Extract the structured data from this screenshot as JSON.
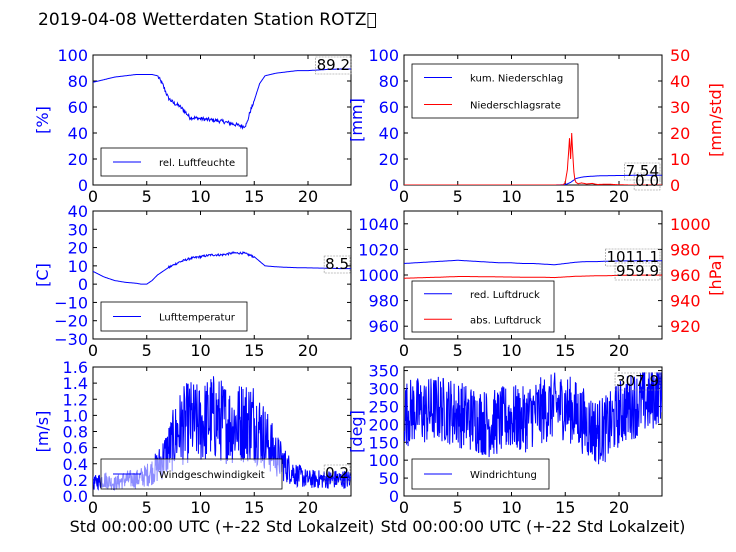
{
  "title": "2019-04-08 Wetterdaten Station ROTZ\u0000",
  "chart_data": [
    {
      "type": "line",
      "id": "humidity",
      "ylabel": "[%]",
      "ylim": [
        0,
        100
      ],
      "yticks": [
        "0",
        "20",
        "40",
        "60",
        "80",
        "100"
      ],
      "xlim": [
        0,
        24
      ],
      "xticks": [
        "0",
        "5",
        "10",
        "15",
        "20"
      ],
      "xlabel": "",
      "grid": false,
      "legend_position": "lower-center",
      "value_label": "89.2",
      "series": [
        {
          "name": "rel. Luftfeuchte",
          "color": "#0000ff",
          "axis": "left",
          "x": [
            0,
            1,
            2,
            3,
            4,
            5,
            5.5,
            6,
            6.5,
            7,
            7.5,
            8,
            8.5,
            9,
            10,
            11,
            12,
            13,
            13.5,
            14,
            14.3,
            14.6,
            15,
            15.5,
            16,
            17,
            18,
            19,
            20,
            21,
            22,
            23,
            24
          ],
          "y": [
            79,
            81,
            83,
            84,
            85,
            85,
            85,
            84,
            77,
            67,
            63,
            61,
            57,
            52,
            51,
            50,
            49,
            47,
            46,
            45,
            47,
            56,
            65,
            78,
            84,
            86,
            87,
            88,
            88,
            88.5,
            89,
            89.2,
            89.2
          ]
        }
      ]
    },
    {
      "type": "line",
      "id": "precipitation",
      "ylabel": "[mm]",
      "ylabel_right": "[mm/std]",
      "ylim": [
        0,
        100
      ],
      "ylim_right": [
        0,
        50
      ],
      "yticks": [
        "0",
        "20",
        "40",
        "60",
        "80",
        "100"
      ],
      "yticks_right": [
        "0",
        "10",
        "20",
        "30",
        "40",
        "50"
      ],
      "xlim": [
        0,
        24
      ],
      "xticks": [
        "0",
        "5",
        "10",
        "15",
        "20"
      ],
      "xlabel": "",
      "grid": false,
      "legend_position": "top-left",
      "value_labels": [
        "7.54",
        "0.0"
      ],
      "series": [
        {
          "name": "kum. Niederschlag",
          "color": "#0000ff",
          "axis": "left",
          "x": [
            0,
            14,
            15,
            15.5,
            16,
            16.5,
            17,
            18,
            19,
            20,
            21,
            22,
            23,
            24
          ],
          "y": [
            0,
            0,
            0.2,
            2,
            5,
            6,
            6.5,
            7,
            7.2,
            7.3,
            7.4,
            7.5,
            7.54,
            7.54
          ]
        },
        {
          "name": "Niederschlagsrate",
          "color": "#ff0000",
          "axis": "right",
          "x": [
            0,
            14.8,
            15,
            15.2,
            15.4,
            15.5,
            15.6,
            15.7,
            15.8,
            15.9,
            16,
            16.2,
            16.5,
            17,
            17.5,
            18,
            19,
            20,
            21,
            22,
            23,
            24
          ],
          "y": [
            0,
            0,
            1,
            6,
            18,
            10,
            20,
            12,
            5,
            2,
            1,
            0.5,
            0.8,
            0.4,
            0.6,
            0.2,
            0.3,
            0.1,
            0,
            0,
            0,
            0
          ]
        }
      ]
    },
    {
      "type": "line",
      "id": "temperature",
      "ylabel": "[C]",
      "ylim": [
        -30,
        40
      ],
      "yticks": [
        "−30",
        "−20",
        "−10",
        "0",
        "10",
        "20",
        "30",
        "40"
      ],
      "xlim": [
        0,
        24
      ],
      "xticks": [
        "0",
        "5",
        "10",
        "15",
        "20"
      ],
      "xlabel": "",
      "grid": false,
      "legend_position": "lower-center",
      "value_label": "8.5",
      "series": [
        {
          "name": "Lufttemperatur",
          "color": "#0000ff",
          "axis": "left",
          "x": [
            0,
            1,
            2,
            3,
            4,
            4.5,
            5,
            5.5,
            6,
            7,
            8,
            9,
            10,
            11,
            12,
            13,
            14,
            14.5,
            15,
            16,
            17,
            18,
            19,
            20,
            21,
            22,
            23,
            24
          ],
          "y": [
            7,
            4,
            2,
            1,
            0.5,
            0,
            0,
            2,
            5,
            9,
            12,
            14,
            15,
            16,
            16,
            17,
            17,
            16,
            15,
            10,
            9.5,
            9.2,
            9,
            8.9,
            8.8,
            8.7,
            8.5,
            8.5
          ]
        }
      ]
    },
    {
      "type": "line",
      "id": "pressure",
      "ylabel_right": "[hPa]",
      "ylim": [
        950,
        1050
      ],
      "ylim_right": [
        910,
        1010
      ],
      "yticks": [
        "960",
        "980",
        "1000",
        "1020",
        "1040"
      ],
      "yticks_right": [
        "920",
        "940",
        "960",
        "980",
        "1000"
      ],
      "xlim": [
        0,
        24
      ],
      "xticks": [
        "0",
        "5",
        "10",
        "15",
        "20"
      ],
      "xlabel": "",
      "grid": false,
      "legend_position": "lower-left",
      "value_labels": [
        "1011.1",
        "959.9"
      ],
      "series": [
        {
          "name": "red. Luftdruck",
          "color": "#0000ff",
          "axis": "left",
          "x": [
            0,
            1,
            2,
            3,
            4,
            5,
            6,
            7,
            8,
            9,
            10,
            11,
            12,
            13,
            14,
            15,
            16,
            17,
            18,
            19,
            20,
            21,
            22,
            23,
            24
          ],
          "y": [
            1009,
            1009.5,
            1010,
            1010.5,
            1011,
            1011.5,
            1011,
            1010.5,
            1010,
            1009.5,
            1009.5,
            1009,
            1009,
            1008.5,
            1008,
            1009,
            1010,
            1010.5,
            1010.5,
            1010.8,
            1011,
            1011,
            1011.1,
            1011.1,
            1011.1
          ]
        },
        {
          "name": "abs. Luftdruck",
          "color": "#ff0000",
          "axis": "right",
          "x": [
            0,
            1,
            2,
            3,
            4,
            5,
            6,
            7,
            8,
            9,
            10,
            11,
            12,
            13,
            14,
            15,
            16,
            17,
            18,
            19,
            20,
            21,
            22,
            23,
            24
          ],
          "y": [
            957.5,
            957.7,
            958,
            958.2,
            958.5,
            958.8,
            958.8,
            958.7,
            958.6,
            958.5,
            958.4,
            958.3,
            958.3,
            958.2,
            958,
            958.5,
            959,
            959.2,
            959.4,
            959.5,
            959.7,
            959.8,
            959.9,
            959.9,
            959.9
          ]
        }
      ]
    },
    {
      "type": "line",
      "id": "windspeed",
      "ylabel": "[m/s]",
      "ylim": [
        0,
        1.6
      ],
      "yticks": [
        "0.0",
        "0.2",
        "0.4",
        "0.6",
        "0.8",
        "1.0",
        "1.2",
        "1.4",
        "1.6"
      ],
      "xlim": [
        0,
        24
      ],
      "xticks": [
        "0",
        "5",
        "10",
        "15",
        "20"
      ],
      "xlabel": "Std 00:00:00 UTC (+-22 Std Lokalzeit)",
      "grid": false,
      "legend_position": "lower-center",
      "value_label": "0.2",
      "series": [
        {
          "name": "Windgeschwindigkeit",
          "color": "#0000ff",
          "axis": "left",
          "noisy": true,
          "x": [
            0,
            1,
            2,
            3,
            4,
            5,
            6,
            7,
            8,
            9,
            10,
            11,
            12,
            13,
            14,
            15,
            16,
            17,
            18,
            19,
            20,
            21,
            22,
            23,
            24
          ],
          "y": [
            0.15,
            0.2,
            0.15,
            0.2,
            0.2,
            0.25,
            0.35,
            0.55,
            0.8,
            0.9,
            0.85,
            0.95,
            0.9,
            0.85,
            0.9,
            0.9,
            0.7,
            0.5,
            0.35,
            0.25,
            0.2,
            0.2,
            0.2,
            0.2,
            0.2
          ]
        }
      ]
    },
    {
      "type": "line",
      "id": "winddirection",
      "ylabel": "[deg]",
      "ylim": [
        0,
        360
      ],
      "yticks": [
        "0",
        "50",
        "100",
        "150",
        "200",
        "250",
        "300",
        "350"
      ],
      "xlim": [
        0,
        24
      ],
      "xticks": [
        "0",
        "5",
        "10",
        "15",
        "20"
      ],
      "xlabel": "Std 00:00:00 UTC (+-22 Std Lokalzeit)",
      "grid": false,
      "legend_position": "lower-left",
      "value_label": "307.9",
      "series": [
        {
          "name": "Windrichtung",
          "color": "#0000ff",
          "axis": "left",
          "noisy": true,
          "x": [
            0,
            1,
            2,
            3,
            4,
            5,
            6,
            7,
            8,
            9,
            10,
            11,
            12,
            13,
            14,
            15,
            16,
            17,
            18,
            19,
            20,
            21,
            22,
            23,
            24
          ],
          "y": [
            230,
            240,
            235,
            245,
            240,
            230,
            220,
            210,
            200,
            210,
            220,
            210,
            230,
            240,
            250,
            250,
            230,
            200,
            180,
            190,
            230,
            250,
            260,
            270,
            307.9
          ]
        }
      ]
    }
  ]
}
